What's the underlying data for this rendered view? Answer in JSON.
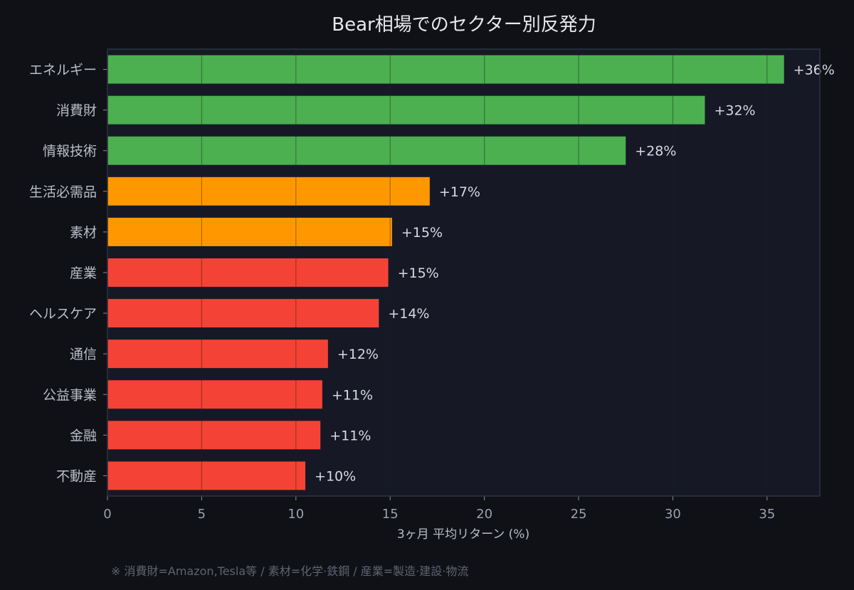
{
  "colors": {
    "background": "#0f1116",
    "plot_background": "#161925",
    "plot_border": "#2e3344",
    "grid": "#262b3a",
    "high": "#4caf50",
    "mid": "#ff9800",
    "low": "#f44336"
  },
  "chart_data": {
    "type": "bar",
    "orientation": "horizontal",
    "title": "Bear相場でのセクター別反発力",
    "xlabel": "3ヶ月 平均リターン (%)",
    "ylabel": "",
    "xlim": [
      0,
      37.8
    ],
    "xticks": [
      "0",
      "5",
      "10",
      "15",
      "20",
      "25",
      "30",
      "35"
    ],
    "grid": true,
    "categories": [
      "エネルギー",
      "消費財",
      "情報技術",
      "生活必需品",
      "素材",
      "産業",
      "ヘルスケア",
      "通信",
      "公益事業",
      "金融",
      "不動産"
    ],
    "values": [
      35.9,
      31.7,
      27.5,
      17.1,
      15.1,
      14.9,
      14.4,
      11.7,
      11.4,
      11.3,
      10.5
    ],
    "value_labels": [
      "+36%",
      "+32%",
      "+28%",
      "+17%",
      "+15%",
      "+15%",
      "+14%",
      "+12%",
      "+11%",
      "+11%",
      "+10%"
    ],
    "bar_colors": [
      "#4caf50",
      "#4caf50",
      "#4caf50",
      "#ff9800",
      "#ff9800",
      "#f44336",
      "#f44336",
      "#f44336",
      "#f44336",
      "#f44336",
      "#f44336"
    ]
  },
  "footnote": "※ 消費財=Amazon,Tesla等 / 素材=化学·鉄鋼 / 産業=製造·建設·物流"
}
